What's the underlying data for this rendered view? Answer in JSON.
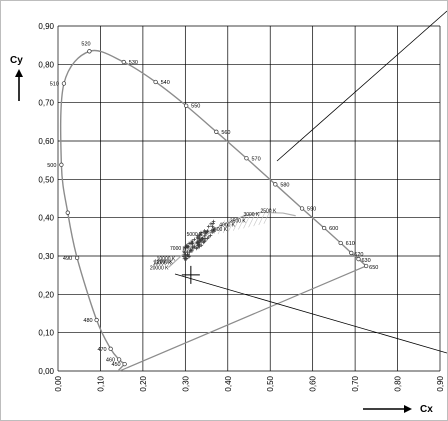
{
  "chart_data": {
    "type": "scatter",
    "title": "",
    "xlabel": "Cx",
    "ylabel": "Cy",
    "xlim": [
      0,
      0.9
    ],
    "ylim": [
      0,
      0.9
    ],
    "grid": true,
    "x_ticks": [
      "0,00",
      "0,10",
      "0,20",
      "0,30",
      "0,40",
      "0,50",
      "0,60",
      "0,70",
      "0,80",
      "0,90"
    ],
    "y_ticks": [
      "0,00",
      "0,10",
      "0,20",
      "0,30",
      "0,40",
      "0,50",
      "0,60",
      "0,70",
      "0,80",
      "0,90"
    ],
    "spectral_locus": [
      {
        "label": "450",
        "x": 0.157,
        "y": 0.018
      },
      {
        "label": "460",
        "x": 0.144,
        "y": 0.03
      },
      {
        "label": "470",
        "x": 0.124,
        "y": 0.058
      },
      {
        "label": "480",
        "x": 0.091,
        "y": 0.133
      },
      {
        "label": "490",
        "x": 0.045,
        "y": 0.295
      },
      {
        "label": "",
        "x": 0.023,
        "y": 0.413
      },
      {
        "label": "500",
        "x": 0.008,
        "y": 0.538
      },
      {
        "label": "510",
        "x": 0.014,
        "y": 0.75
      },
      {
        "label": "520",
        "x": 0.074,
        "y": 0.834
      },
      {
        "label": "530",
        "x": 0.155,
        "y": 0.806
      },
      {
        "label": "540",
        "x": 0.23,
        "y": 0.754
      },
      {
        "label": "550",
        "x": 0.302,
        "y": 0.692
      },
      {
        "label": "560",
        "x": 0.373,
        "y": 0.624
      },
      {
        "label": "570",
        "x": 0.444,
        "y": 0.555
      },
      {
        "label": "580",
        "x": 0.512,
        "y": 0.487
      },
      {
        "label": "590",
        "x": 0.575,
        "y": 0.424
      },
      {
        "label": "600",
        "x": 0.627,
        "y": 0.373
      },
      {
        "label": "610",
        "x": 0.666,
        "y": 0.334
      },
      {
        "label": "620",
        "x": 0.691,
        "y": 0.308
      },
      {
        "label": "630",
        "x": 0.708,
        "y": 0.292
      },
      {
        "label": "650",
        "x": 0.726,
        "y": 0.274
      }
    ],
    "cct_labels": [
      {
        "label": "4000 K",
        "x": 0.38,
        "y": 0.377
      },
      {
        "label": "3500 K",
        "x": 0.405,
        "y": 0.387
      },
      {
        "label": "3000 K",
        "x": 0.437,
        "y": 0.404
      },
      {
        "label": "2500 K",
        "x": 0.477,
        "y": 0.414
      },
      {
        "label": "5000 K",
        "x": 0.345,
        "y": 0.352
      },
      {
        "label": "4500 K",
        "x": 0.361,
        "y": 0.365
      },
      {
        "label": "7000 K",
        "x": 0.306,
        "y": 0.316
      },
      {
        "label": "10000 K",
        "x": 0.281,
        "y": 0.288
      },
      {
        "label": "12000 K",
        "x": 0.275,
        "y": 0.281
      },
      {
        "label": "13000 K",
        "x": 0.272,
        "y": 0.278
      },
      {
        "label": "20000 K",
        "x": 0.265,
        "y": 0.265
      }
    ],
    "text_labels": [
      "4000 K",
      "3500 K",
      "3000 K",
      "4500 K",
      "5000 K",
      "7000 K",
      "10000 K",
      "12000 K",
      "13000 K",
      "20000 K"
    ],
    "white_point": {
      "x": 0.313,
      "y": 0.329
    },
    "colors": {
      "locus": "#8c8c8c",
      "grid": "#000000",
      "planck": "#b0b0b0",
      "points": "#3a3a3a"
    }
  }
}
